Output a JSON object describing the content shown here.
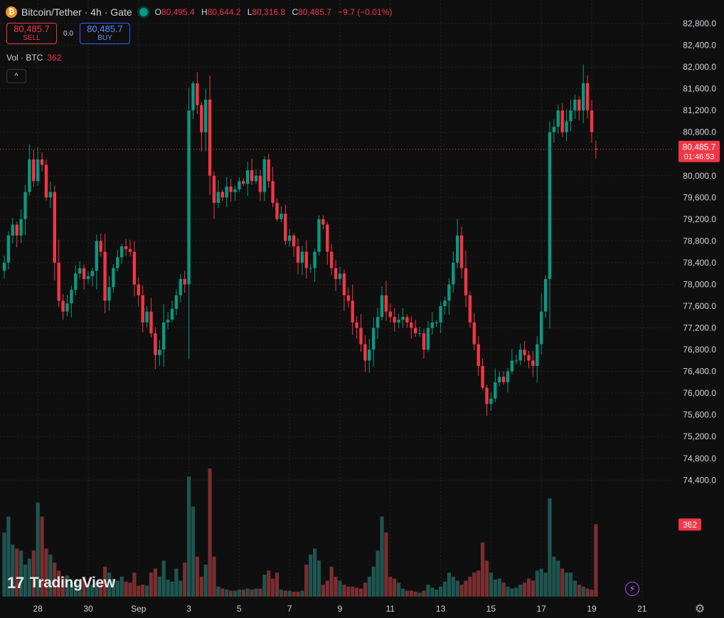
{
  "header": {
    "coin_glyph": "₿",
    "symbol": "Bitcoin/Tether · 4h · Gate",
    "ohlc": {
      "o_label": "O",
      "o": "80,495.4",
      "h_label": "H",
      "h": "80,644.2",
      "l_label": "L",
      "l": "80,316.8",
      "c_label": "C",
      "c": "80,485.7",
      "change": "−9.7 (−0.01%)"
    }
  },
  "trade": {
    "sell_price": "80,485.7",
    "sell_label": "SELL",
    "spread": "0.0",
    "buy_price": "80,485.7",
    "buy_label": "BUY"
  },
  "volume_legend": {
    "label": "Vol · BTC",
    "value": "362"
  },
  "collapse_glyph": "^",
  "logo": {
    "mark": "17",
    "text": "TradingView"
  },
  "icons": {
    "bolt": "⚡",
    "gear": "⚙"
  },
  "colors": {
    "up": "#089981",
    "down": "#f23645",
    "vol_up": "#1e5550",
    "vol_down": "#7a2e30",
    "grid": "#242424",
    "text": "#d1d4dc"
  },
  "chart_data": {
    "type": "candlestick",
    "interval": "4h",
    "ylim": [
      74000,
      83000
    ],
    "y_ticks": [
      {
        "v": 82800,
        "label": "82,800.0"
      },
      {
        "v": 82400,
        "label": "82,400.0"
      },
      {
        "v": 82000,
        "label": "82,000.0"
      },
      {
        "v": 81600,
        "label": "81,600.0"
      },
      {
        "v": 81200,
        "label": "81,200.0"
      },
      {
        "v": 80800,
        "label": "80,800.0"
      },
      {
        "v": 80000,
        "label": "80,000.0"
      },
      {
        "v": 79600,
        "label": "79,600.0"
      },
      {
        "v": 79200,
        "label": "79,200.0"
      },
      {
        "v": 78800,
        "label": "78,800.0"
      },
      {
        "v": 78400,
        "label": "78,400.0"
      },
      {
        "v": 78000,
        "label": "78,000.0"
      },
      {
        "v": 77600,
        "label": "77,600.0"
      },
      {
        "v": 77200,
        "label": "77,200.0"
      },
      {
        "v": 76800,
        "label": "76,800.0"
      },
      {
        "v": 76400,
        "label": "76,400.0"
      },
      {
        "v": 76000,
        "label": "76,000.0"
      },
      {
        "v": 75600,
        "label": "75,600.0"
      },
      {
        "v": 75200,
        "label": "75,200.0"
      },
      {
        "v": 74800,
        "label": "74,800.0"
      },
      {
        "v": 74400,
        "label": "74,400.0"
      }
    ],
    "x_ticks": [
      {
        "i": 8,
        "label": "28"
      },
      {
        "i": 20,
        "label": "30"
      },
      {
        "i": 32,
        "label": "Sep"
      },
      {
        "i": 44,
        "label": "3"
      },
      {
        "i": 56,
        "label": "5"
      },
      {
        "i": 68,
        "label": "7"
      },
      {
        "i": 80,
        "label": "9"
      },
      {
        "i": 92,
        "label": "11"
      },
      {
        "i": 104,
        "label": "13"
      },
      {
        "i": 116,
        "label": "15"
      },
      {
        "i": 128,
        "label": "17"
      },
      {
        "i": 140,
        "label": "19"
      },
      {
        "i": 152,
        "label": "21"
      }
    ],
    "last_price": {
      "value": 80485.7,
      "label": "80,485.7",
      "countdown": "01:46:53"
    },
    "last_volume": {
      "value": 362,
      "label": "362"
    },
    "closes": [
      78400,
      78900,
      79100,
      78900,
      79200,
      79700,
      80300,
      79900,
      80300,
      80200,
      79600,
      79700,
      78400,
      77700,
      77500,
      77650,
      77900,
      78200,
      78300,
      78100,
      78150,
      78250,
      78800,
      78600,
      77700,
      77950,
      78300,
      78500,
      78700,
      78650,
      78600,
      78000,
      77800,
      77300,
      77500,
      77100,
      76700,
      76800,
      77300,
      77350,
      77550,
      77800,
      78100,
      78000,
      81200,
      81700,
      81300,
      80800,
      81400,
      80000,
      79500,
      79700,
      79600,
      79800,
      79700,
      79750,
      79900,
      79850,
      80100,
      79900,
      80000,
      79700,
      80300,
      79900,
      79500,
      79200,
      79300,
      78800,
      78900,
      78700,
      78400,
      78600,
      78300,
      78300,
      78600,
      79200,
      79100,
      78600,
      78300,
      78100,
      78200,
      77800,
      77700,
      77300,
      77200,
      76900,
      76600,
      76800,
      77200,
      77400,
      77800,
      77500,
      77400,
      77300,
      77350,
      77400,
      77300,
      77200,
      77100,
      77100,
      76800,
      77200,
      77300,
      77300,
      77600,
      77700,
      78000,
      78400,
      78900,
      78300,
      77800,
      77300,
      76900,
      76500,
      76100,
      75800,
      75900,
      76200,
      76300,
      76200,
      76400,
      76600,
      76600,
      76800,
      76700,
      76600,
      76500,
      76900,
      77500,
      78100,
      80800,
      80900,
      81200,
      80800,
      81000,
      81200,
      81400,
      81200,
      81700,
      81200,
      80800,
      80485.7
    ],
    "volumes": [
      320,
      400,
      260,
      240,
      230,
      160,
      190,
      230,
      470,
      400,
      240,
      210,
      170,
      130,
      100,
      105,
      70,
      80,
      70,
      100,
      65,
      60,
      70,
      75,
      150,
      120,
      90,
      80,
      100,
      75,
      70,
      120,
      55,
      60,
      55,
      120,
      140,
      100,
      180,
      85,
      75,
      140,
      80,
      170,
      600,
      450,
      200,
      100,
      160,
      640,
      200,
      50,
      40,
      35,
      30,
      30,
      35,
      35,
      40,
      35,
      40,
      40,
      110,
      130,
      90,
      120,
      35,
      30,
      30,
      25,
      25,
      30,
      160,
      210,
      240,
      180,
      60,
      80,
      150,
      100,
      80,
      60,
      50,
      50,
      45,
      40,
      70,
      100,
      150,
      230,
      400,
      320,
      100,
      90,
      70,
      40,
      30,
      30,
      25,
      20,
      30,
      60,
      45,
      35,
      50,
      75,
      120,
      100,
      80,
      60,
      80,
      100,
      120,
      130,
      270,
      180,
      120,
      85,
      90,
      70,
      50,
      40,
      45,
      60,
      70,
      90,
      80,
      130,
      140,
      120,
      490,
      200,
      180,
      140,
      120,
      120,
      80,
      60,
      50,
      40,
      35,
      362
    ]
  }
}
